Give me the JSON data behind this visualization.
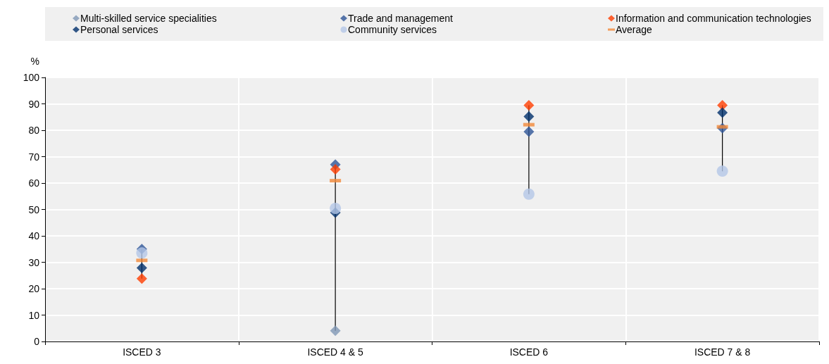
{
  "chart_data": {
    "type": "scatter",
    "ylabel": "%",
    "categories": [
      "ISCED 3",
      "ISCED 4 & 5",
      "ISCED 6",
      "ISCED 7 & 8"
    ],
    "series": [
      {
        "name": "Multi-skilled service specialities",
        "color": "#7f97b5",
        "marker": "diamond",
        "values": [
          null,
          4.1,
          null,
          null
        ]
      },
      {
        "name": "Trade and management",
        "color": "#2e5597",
        "marker": "diamond",
        "values": [
          35,
          67,
          79.5,
          80.8
        ]
      },
      {
        "name": "Information and communication technologies",
        "color": "#ff3d00",
        "marker": "diamond",
        "values": [
          23.8,
          65.2,
          89.5,
          89.5
        ]
      },
      {
        "name": "Personal services",
        "color": "#002f6c",
        "marker": "diamond",
        "values": [
          27.9,
          48.8,
          85.2,
          86.7
        ]
      },
      {
        "name": "Community services",
        "color": "#b4c7e7",
        "marker": "circle",
        "values": [
          33.5,
          50.4,
          55.8,
          64.5
        ]
      },
      {
        "name": "Average",
        "color": "#f28a3a",
        "values": [
          30.7,
          60.9,
          82.1,
          81.3
        ]
      }
    ],
    "ylim": [
      0,
      100
    ],
    "yticks": [
      0,
      10,
      20,
      30,
      40,
      50,
      60,
      70,
      80,
      90,
      100
    ],
    "grid": true,
    "legend": "top"
  }
}
